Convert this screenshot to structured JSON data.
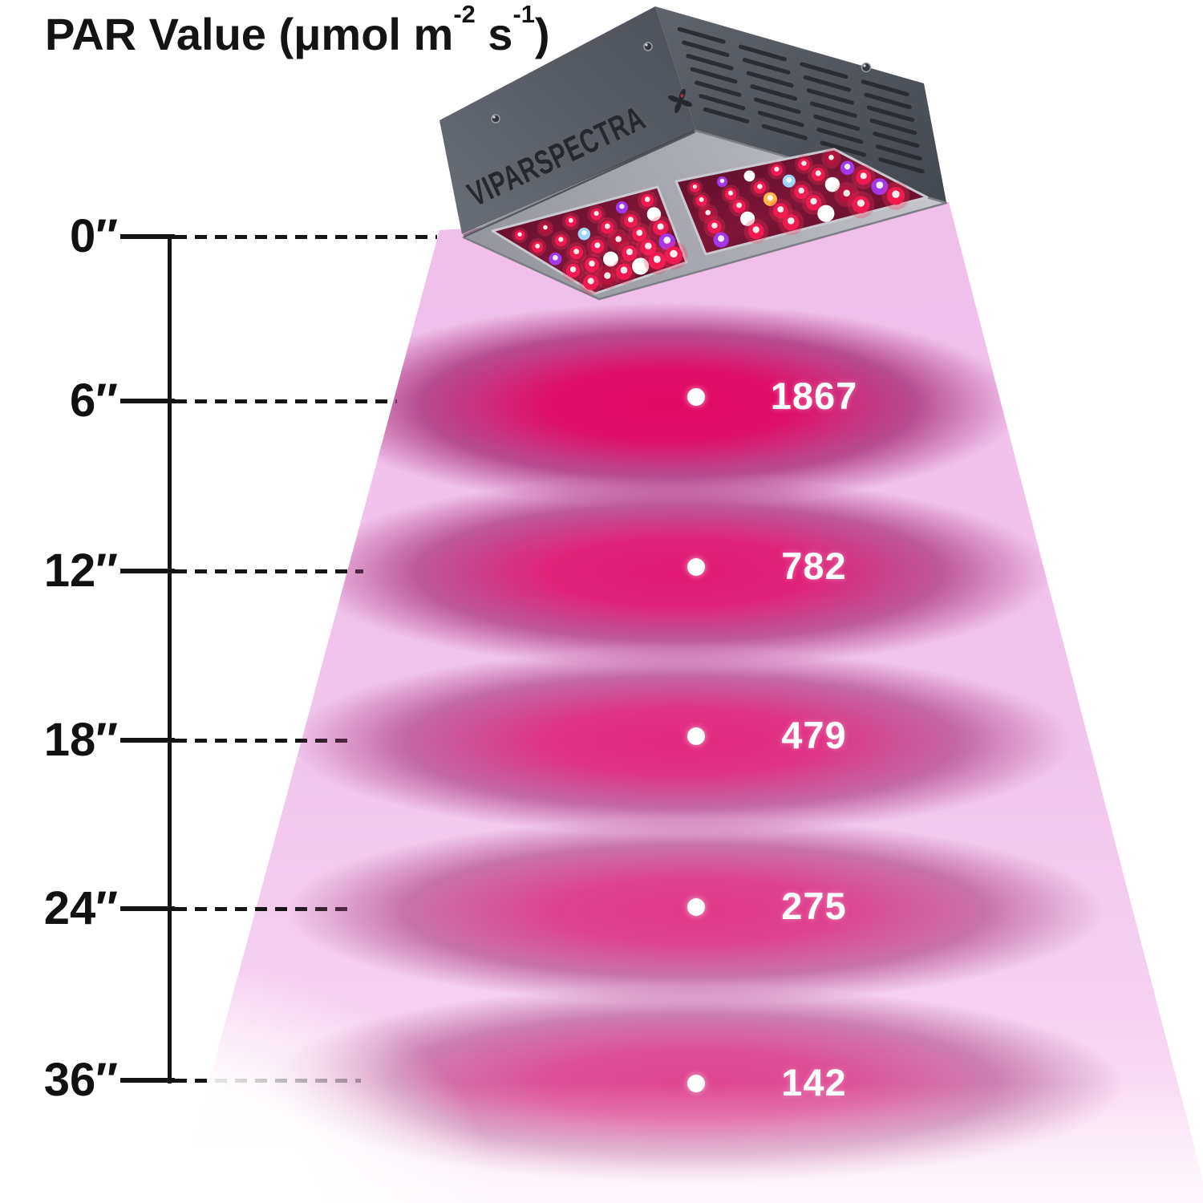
{
  "title": {
    "prefix": "PAR Value (μmol m",
    "sup_1": "-2",
    "mid": " s",
    "sup_2": "-1",
    "suffix": ")"
  },
  "brand": {
    "name": "VIPARSPECTRA",
    "logo": "four-petal-flower"
  },
  "axis": {
    "unit": "inches",
    "labels": [
      "0″",
      "6″",
      "12″",
      "18″",
      "24″",
      "36″"
    ]
  },
  "measurements": [
    {
      "distance": "6″",
      "par": "1867"
    },
    {
      "distance": "12″",
      "par": "782"
    },
    {
      "distance": "18″",
      "par": "479"
    },
    {
      "distance": "24″",
      "par": "275"
    },
    {
      "distance": "36″",
      "par": "142"
    }
  ],
  "chart_data": {
    "type": "scatter",
    "title": "PAR Value (μmol m⁻² s⁻¹)",
    "x_ticks": [
      "0″",
      "6″",
      "12″",
      "18″",
      "24″",
      "36″"
    ],
    "x_distances_inches": [
      6,
      12,
      18,
      24,
      36
    ],
    "values": [
      1867,
      782,
      479,
      275,
      142
    ],
    "legend": "none",
    "grid": "dashed horizontal guide lines from distance scale to light cone"
  },
  "colors": {
    "axis": "#151515",
    "cone_pink": "#f2c4eb",
    "hotspot_cores": [
      "#e20a64",
      "#e21570",
      "#e2237a",
      "#e03082",
      "#de3a88"
    ],
    "value_text": "#ffffff",
    "fixture_body": "#565a62",
    "fixture_rim": "#adadb5",
    "led_panel": "#5a0f28",
    "leds": {
      "r": "#ef1a4f",
      "d": "#b5123c",
      "p": "#a238ea",
      "w": "#ffffff",
      "b": "#9fd4ff",
      "a": "#ffb547"
    }
  }
}
